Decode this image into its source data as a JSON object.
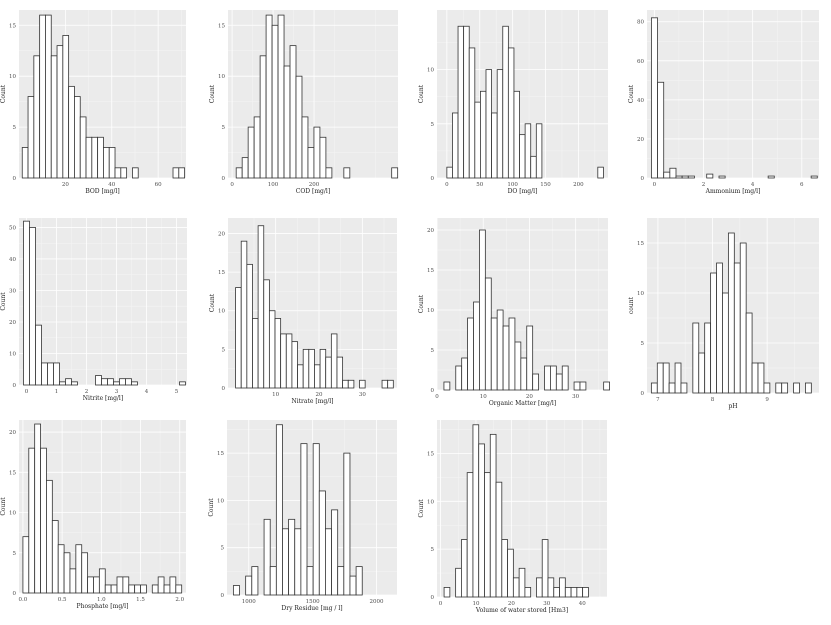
{
  "chart_data": [
    {
      "type": "bar",
      "xlabel": "BOD [mg/l]",
      "ylabel": "Count",
      "xlim": [
        0,
        72
      ],
      "ylim": [
        0,
        16.5
      ],
      "xticks": [
        {
          "v": 20,
          "label": "20"
        },
        {
          "v": 40,
          "label": "40"
        },
        {
          "v": 60,
          "label": "60"
        }
      ],
      "yticks": [
        {
          "v": 0,
          "label": "0"
        },
        {
          "v": 5,
          "label": "5"
        },
        {
          "v": 10,
          "label": "10"
        },
        {
          "v": 15,
          "label": "15"
        }
      ],
      "bin_start": 1.4,
      "bin_width": 2.5,
      "values": [
        3,
        8,
        12,
        16,
        16,
        12,
        13,
        14,
        9,
        8,
        6,
        4,
        4,
        4,
        3,
        3,
        1,
        1,
        0,
        1,
        0,
        0,
        0,
        0,
        0,
        0,
        1,
        1
      ]
    },
    {
      "type": "bar",
      "xlabel": "COD [mg/l]",
      "ylabel": "Count",
      "xlim": [
        -10,
        405
      ],
      "ylim": [
        0,
        16.5
      ],
      "xticks": [
        {
          "v": 0,
          "label": "0"
        },
        {
          "v": 100,
          "label": "100"
        },
        {
          "v": 200,
          "label": "200"
        }
      ],
      "yticks": [
        {
          "v": 0,
          "label": "0"
        },
        {
          "v": 5,
          "label": "5"
        },
        {
          "v": 10,
          "label": "10"
        },
        {
          "v": 15,
          "label": "15"
        }
      ],
      "bin_start": 10,
      "bin_width": 14.6,
      "values": [
        1,
        2,
        5,
        6,
        12,
        16,
        15,
        16,
        11,
        13,
        10,
        6,
        3,
        5,
        4,
        1,
        0,
        0,
        1,
        0,
        0,
        0,
        0,
        0,
        0,
        0,
        1
      ]
    },
    {
      "type": "bar",
      "xlabel": "DO [mg/l]",
      "ylabel": "Count",
      "xlim": [
        -15,
        245
      ],
      "ylim": [
        0,
        15.5
      ],
      "xticks": [
        {
          "v": 0,
          "label": "0"
        },
        {
          "v": 50,
          "label": "50"
        },
        {
          "v": 100,
          "label": "100"
        },
        {
          "v": 150,
          "label": "150"
        },
        {
          "v": 200,
          "label": "200"
        }
      ],
      "yticks": [
        {
          "v": 0,
          "label": "0"
        },
        {
          "v": 5,
          "label": "5"
        },
        {
          "v": 10,
          "label": "10"
        }
      ],
      "bin_start": 0,
      "bin_width": 8.5,
      "values": [
        1,
        6,
        14,
        14,
        12,
        7,
        8,
        10,
        6,
        10,
        14,
        12,
        8,
        4,
        5,
        2,
        5,
        0,
        0,
        0,
        0,
        0,
        0,
        0,
        0,
        0,
        0,
        1
      ]
    },
    {
      "type": "bar",
      "xlabel": "Ammonium [mg/l]",
      "ylabel": "Count",
      "xlim": [
        -0.3,
        6.7
      ],
      "ylim": [
        0,
        86
      ],
      "xticks": [
        {
          "v": 0,
          "label": "0"
        },
        {
          "v": 2,
          "label": "2"
        },
        {
          "v": 4,
          "label": "4"
        },
        {
          "v": 6,
          "label": "6"
        }
      ],
      "yticks": [
        {
          "v": 0,
          "label": "0"
        },
        {
          "v": 20,
          "label": "20"
        },
        {
          "v": 40,
          "label": "40"
        },
        {
          "v": 60,
          "label": "60"
        },
        {
          "v": 80,
          "label": "80"
        }
      ],
      "bin_start": -0.12,
      "bin_width": 0.25,
      "values": [
        82,
        49,
        3,
        5,
        1,
        1,
        1,
        0,
        0,
        2,
        0,
        1,
        0,
        0,
        0,
        0,
        0,
        0,
        0,
        1,
        0,
        0,
        0,
        0,
        0,
        0,
        1
      ]
    },
    {
      "type": "bar",
      "xlabel": "Nitrite [mg/l]",
      "ylabel": "Count",
      "xlim": [
        -0.25,
        5.35
      ],
      "ylim": [
        0,
        53
      ],
      "xticks": [
        {
          "v": 0,
          "label": "0"
        },
        {
          "v": 1,
          "label": "1"
        },
        {
          "v": 2,
          "label": "2"
        },
        {
          "v": 3,
          "label": "3"
        },
        {
          "v": 4,
          "label": "4"
        },
        {
          "v": 5,
          "label": "5"
        }
      ],
      "yticks": [
        {
          "v": 0,
          "label": "0"
        },
        {
          "v": 10,
          "label": "10"
        },
        {
          "v": 20,
          "label": "20"
        },
        {
          "v": 30,
          "label": "30"
        },
        {
          "v": 40,
          "label": "40"
        },
        {
          "v": 50,
          "label": "50"
        }
      ],
      "bin_start": -0.1,
      "bin_width": 0.2,
      "values": [
        52,
        50,
        19,
        7,
        7,
        7,
        1,
        2,
        1,
        0,
        0,
        0,
        3,
        2,
        2,
        1,
        2,
        2,
        1,
        0,
        0,
        0,
        0,
        0,
        0,
        0,
        1
      ]
    },
    {
      "type": "bar",
      "xlabel": "Nitrate [mg/l]",
      "ylabel": "Count",
      "xlim": [
        -1,
        38
      ],
      "ylim": [
        0,
        22
      ],
      "xticks": [
        {
          "v": 10,
          "label": "10"
        },
        {
          "v": 20,
          "label": "20"
        },
        {
          "v": 30,
          "label": "30"
        }
      ],
      "yticks": [
        {
          "v": 0,
          "label": "0"
        },
        {
          "v": 5,
          "label": "5"
        },
        {
          "v": 10,
          "label": "10"
        },
        {
          "v": 15,
          "label": "15"
        },
        {
          "v": 20,
          "label": "20"
        }
      ],
      "bin_start": 0.75,
      "bin_width": 1.3,
      "values": [
        13,
        19,
        16,
        9,
        21,
        14,
        10,
        9,
        7,
        7,
        6,
        3,
        5,
        5,
        3,
        5,
        4,
        7,
        4,
        1,
        1,
        0,
        1,
        0,
        0,
        0,
        1,
        1
      ]
    },
    {
      "type": "bar",
      "xlabel": "Organic Matter [mg/l]",
      "ylabel": "Count",
      "xlim": [
        0,
        37
      ],
      "ylim": [
        0,
        21.5
      ],
      "xticks": [
        {
          "v": 0,
          "label": "0"
        },
        {
          "v": 10,
          "label": "10"
        },
        {
          "v": 20,
          "label": "20"
        },
        {
          "v": 30,
          "label": "30"
        }
      ],
      "yticks": [
        {
          "v": 0,
          "label": "0"
        },
        {
          "v": 5,
          "label": "5"
        },
        {
          "v": 10,
          "label": "10"
        },
        {
          "v": 15,
          "label": "15"
        },
        {
          "v": 20,
          "label": "20"
        }
      ],
      "bin_start": 1.5,
      "bin_width": 1.28,
      "values": [
        1,
        0,
        3,
        4,
        9,
        11,
        20,
        14,
        9,
        10,
        8,
        9,
        6,
        4,
        8,
        2,
        0,
        3,
        3,
        2,
        3,
        0,
        1,
        1,
        0,
        0,
        0,
        1
      ]
    },
    {
      "type": "bar",
      "xlabel": "pH",
      "ylabel": "count",
      "xlim": [
        6.8,
        9.95
      ],
      "ylim": [
        0,
        17.5
      ],
      "xticks": [
        {
          "v": 7,
          "label": "7"
        },
        {
          "v": 8,
          "label": "8"
        },
        {
          "v": 9,
          "label": "9"
        }
      ],
      "yticks": [
        {
          "v": 0,
          "label": "0"
        },
        {
          "v": 5,
          "label": "5"
        },
        {
          "v": 10,
          "label": "10"
        },
        {
          "v": 15,
          "label": "15"
        }
      ],
      "bin_start": 6.88,
      "bin_width": 0.1085,
      "values": [
        1,
        3,
        3,
        1,
        3,
        1,
        0,
        7,
        4,
        7,
        12,
        13,
        10,
        16,
        13,
        15,
        8,
        3,
        3,
        1,
        0,
        1,
        1,
        0,
        1,
        0,
        1
      ]
    },
    {
      "type": "bar",
      "xlabel": "Phosphate [mg/l]",
      "ylabel": "Count",
      "xlim": [
        -0.05,
        2.08
      ],
      "ylim": [
        0,
        21.5
      ],
      "xticks": [
        {
          "v": 0,
          "label": "0.0"
        },
        {
          "v": 0.5,
          "label": "0.5"
        },
        {
          "v": 1,
          "label": "1.0"
        },
        {
          "v": 1.5,
          "label": "1.5"
        },
        {
          "v": 2,
          "label": "2.0"
        }
      ],
      "yticks": [
        {
          "v": 0,
          "label": "0"
        },
        {
          "v": 5,
          "label": "5"
        },
        {
          "v": 10,
          "label": "10"
        },
        {
          "v": 15,
          "label": "15"
        },
        {
          "v": 20,
          "label": "20"
        }
      ],
      "bin_start": 0,
      "bin_width": 0.075,
      "values": [
        7,
        18,
        21,
        18,
        14,
        9,
        6,
        5,
        3,
        6,
        5,
        2,
        2,
        3,
        1,
        1,
        2,
        2,
        1,
        1,
        1,
        0,
        1,
        2,
        1,
        2,
        1
      ]
    },
    {
      "type": "bar",
      "xlabel": "Dry Residue [mg / l]",
      "ylabel": "Count",
      "xlim": [
        830,
        2160
      ],
      "ylim": [
        0,
        18.5
      ],
      "xticks": [
        {
          "v": 1000,
          "label": "1000"
        },
        {
          "v": 1500,
          "label": "1500"
        },
        {
          "v": 2000,
          "label": "2000"
        }
      ],
      "yticks": [
        {
          "v": 0,
          "label": "0"
        },
        {
          "v": 5,
          "label": "5"
        },
        {
          "v": 10,
          "label": "10"
        },
        {
          "v": 15,
          "label": "15"
        }
      ],
      "bin_start": 880,
      "bin_width": 48,
      "values": [
        1,
        0,
        2,
        3,
        0,
        8,
        3,
        18,
        7,
        8,
        7,
        16,
        3,
        16,
        11,
        7,
        9,
        3,
        15,
        2,
        3
      ]
    },
    {
      "type": "bar",
      "xlabel": "Volume of water stored [Hm3]",
      "ylabel": "Count",
      "xlim": [
        -1,
        47
      ],
      "ylim": [
        0,
        18.5
      ],
      "xticks": [
        {
          "v": 0,
          "label": "0"
        },
        {
          "v": 10,
          "label": "10"
        },
        {
          "v": 20,
          "label": "20"
        },
        {
          "v": 30,
          "label": "30"
        },
        {
          "v": 40,
          "label": "40"
        }
      ],
      "yticks": [
        {
          "v": 0,
          "label": "0"
        },
        {
          "v": 5,
          "label": "5"
        },
        {
          "v": 10,
          "label": "10"
        },
        {
          "v": 15,
          "label": "15"
        }
      ],
      "bin_start": 1,
      "bin_width": 1.63,
      "values": [
        1,
        0,
        3,
        6,
        13,
        18,
        16,
        13,
        17,
        12,
        6,
        5,
        2,
        3,
        1,
        0,
        2,
        6,
        2,
        1,
        2,
        1,
        1,
        1,
        1
      ]
    }
  ]
}
